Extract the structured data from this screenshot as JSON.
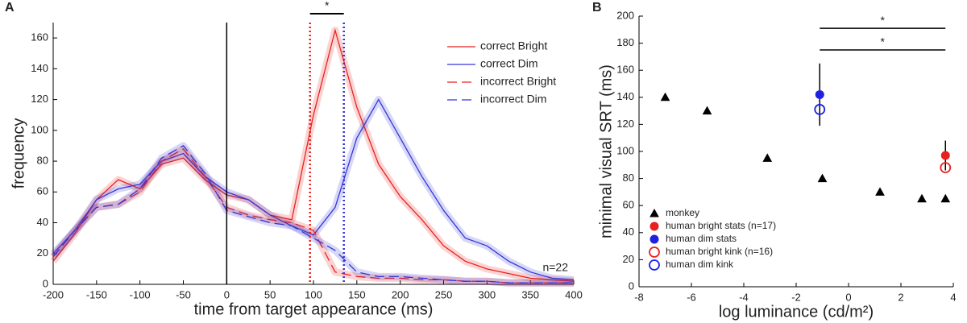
{
  "chart_data": [
    {
      "type": "line",
      "panel_label": "A",
      "xlabel": "time from target appearance (ms)",
      "ylabel": "frequency",
      "x": [
        -200,
        -175,
        -150,
        -125,
        -100,
        -75,
        -50,
        -25,
        0,
        25,
        50,
        75,
        100,
        125,
        150,
        175,
        200,
        225,
        250,
        275,
        300,
        325,
        350,
        375,
        400
      ],
      "series": [
        {
          "name": "correct Bright",
          "color": "#e8211f",
          "line_style": "solid",
          "values": [
            15,
            33,
            55,
            68,
            62,
            78,
            82,
            68,
            58,
            55,
            45,
            42,
            110,
            165,
            115,
            78,
            57,
            42,
            25,
            15,
            10,
            7,
            4,
            3,
            2
          ]
        },
        {
          "name": "correct Dim",
          "color": "#3535d8",
          "line_style": "solid",
          "values": [
            20,
            35,
            55,
            62,
            65,
            80,
            85,
            70,
            60,
            55,
            45,
            38,
            32,
            50,
            95,
            120,
            95,
            70,
            48,
            30,
            25,
            15,
            8,
            4,
            3
          ]
        },
        {
          "name": "incorrect Bright",
          "color": "#e8211f",
          "line_style": "dashed",
          "values": [
            18,
            35,
            50,
            52,
            60,
            80,
            88,
            70,
            50,
            45,
            42,
            40,
            35,
            8,
            5,
            4,
            4,
            3,
            3,
            2,
            2,
            1,
            1,
            1,
            1
          ]
        },
        {
          "name": "incorrect Dim",
          "color": "#3535d8",
          "line_style": "dashed",
          "values": [
            18,
            35,
            50,
            52,
            62,
            82,
            90,
            72,
            48,
            44,
            40,
            38,
            30,
            22,
            8,
            5,
            5,
            4,
            3,
            2,
            2,
            1,
            1,
            1,
            1
          ]
        }
      ],
      "vlines": [
        {
          "x": 0,
          "color": "#000000",
          "line_style": "solid"
        },
        {
          "x": 96,
          "color": "#e8211f",
          "line_style": "dotted"
        },
        {
          "x": 135,
          "color": "#3535d8",
          "line_style": "dotted"
        }
      ],
      "significance": [
        {
          "x": [
            96,
            135
          ],
          "label": "*"
        }
      ],
      "annotation": "n=22",
      "xlim": [
        -200,
        400
      ],
      "xticks": [
        -200,
        -150,
        -100,
        -50,
        0,
        50,
        100,
        150,
        200,
        250,
        300,
        350,
        400
      ],
      "ylim": [
        0,
        170
      ],
      "yticks": [
        0,
        20,
        40,
        60,
        80,
        100,
        120,
        140,
        160
      ],
      "legend": "upper right"
    },
    {
      "type": "scatter",
      "panel_label": "B",
      "xlabel": "log luminance (cd/m²)",
      "ylabel": "minimal visual SRT (ms)",
      "series": [
        {
          "name": "monkey",
          "color": "#000000",
          "marker": "triangle",
          "filled": true,
          "x": [
            -7,
            -5.4,
            -3.1,
            -1,
            1.2,
            2.8,
            3.7
          ],
          "values": [
            140,
            130,
            95,
            80,
            70,
            65,
            65
          ]
        },
        {
          "name": "human bright stats (n=17)",
          "color": "#e8211f",
          "marker": "circle",
          "filled": true,
          "x": [
            3.7
          ],
          "values": [
            97
          ],
          "errors": [
            11
          ]
        },
        {
          "name": "human dim stats",
          "color": "#2020e0",
          "marker": "circle",
          "filled": true,
          "x": [
            -1.1
          ],
          "values": [
            142
          ],
          "errors": [
            23
          ]
        },
        {
          "name": "human bright kink (n=16)",
          "color": "#e8211f",
          "marker": "circle",
          "filled": false,
          "x": [
            3.7
          ],
          "values": [
            88
          ]
        },
        {
          "name": "human dim kink",
          "color": "#2020e0",
          "marker": "circle",
          "filled": false,
          "x": [
            -1.1
          ],
          "values": [
            131
          ]
        }
      ],
      "significance": [
        {
          "x": [
            -1.1,
            3.7
          ],
          "y": 191,
          "label": "*"
        },
        {
          "x": [
            -1.1,
            3.7
          ],
          "y": 175,
          "label": "*"
        }
      ],
      "xlim": [
        -8,
        4
      ],
      "xticks": [
        -8,
        -6,
        -4,
        -2,
        0,
        2,
        4
      ],
      "ylim": [
        0,
        200
      ],
      "yticks": [
        0,
        20,
        40,
        60,
        80,
        100,
        120,
        140,
        160,
        180,
        200
      ],
      "legend": "lower left"
    }
  ]
}
